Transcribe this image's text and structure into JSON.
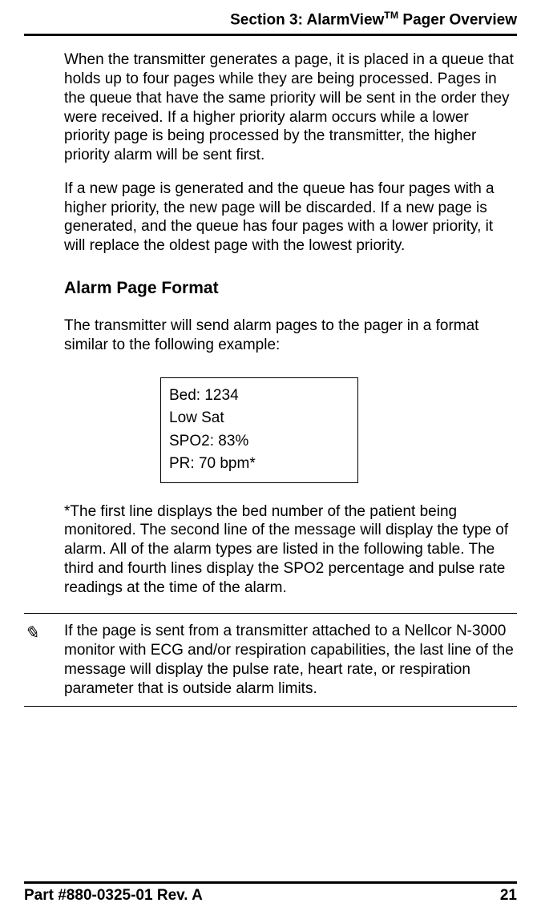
{
  "header": {
    "section_prefix": "Section 3: AlarmView",
    "tm": "TM",
    "section_suffix": " Pager Overview"
  },
  "body": {
    "para1": "When the transmitter generates a page, it is placed in a queue that holds up to four pages while they are being processed. Pages in the queue that have the same priority will be sent in the order they were received. If a higher priority alarm occurs while a lower priority page is being processed by the transmitter, the higher priority alarm will be sent first.",
    "para2": "If a new page is generated and the queue has four pages with a higher priority, the new page will be discarded. If a new page is generated, and the queue has four pages with a lower priority, it will replace the oldest page with the lowest priority.",
    "heading": "Alarm Page Format",
    "para3": "The transmitter will send alarm pages to the pager in a format similar to the following example:",
    "example": {
      "line1": "Bed: 1234",
      "line2": "Low Sat",
      "line3": "SPO2: 83%",
      "line4": "PR: 70 bpm*"
    },
    "para4": "*The first line displays the bed number of the patient being monitored. The second line of the message will display the type of alarm. All of the alarm types are listed in the following table. The third and fourth lines display the SPO2 percentage and pulse rate readings at the time of the alarm.",
    "note_icon": "✎",
    "note_text": "If the page is sent from a transmitter attached to a Nellcor N-3000 monitor with ECG and/or respiration capabilities, the last line of the message will display the pulse rate, heart rate, or respiration parameter that is outside alarm limits."
  },
  "footer": {
    "part": "Part #880-0325-01 Rev. A",
    "page_num": "21"
  }
}
